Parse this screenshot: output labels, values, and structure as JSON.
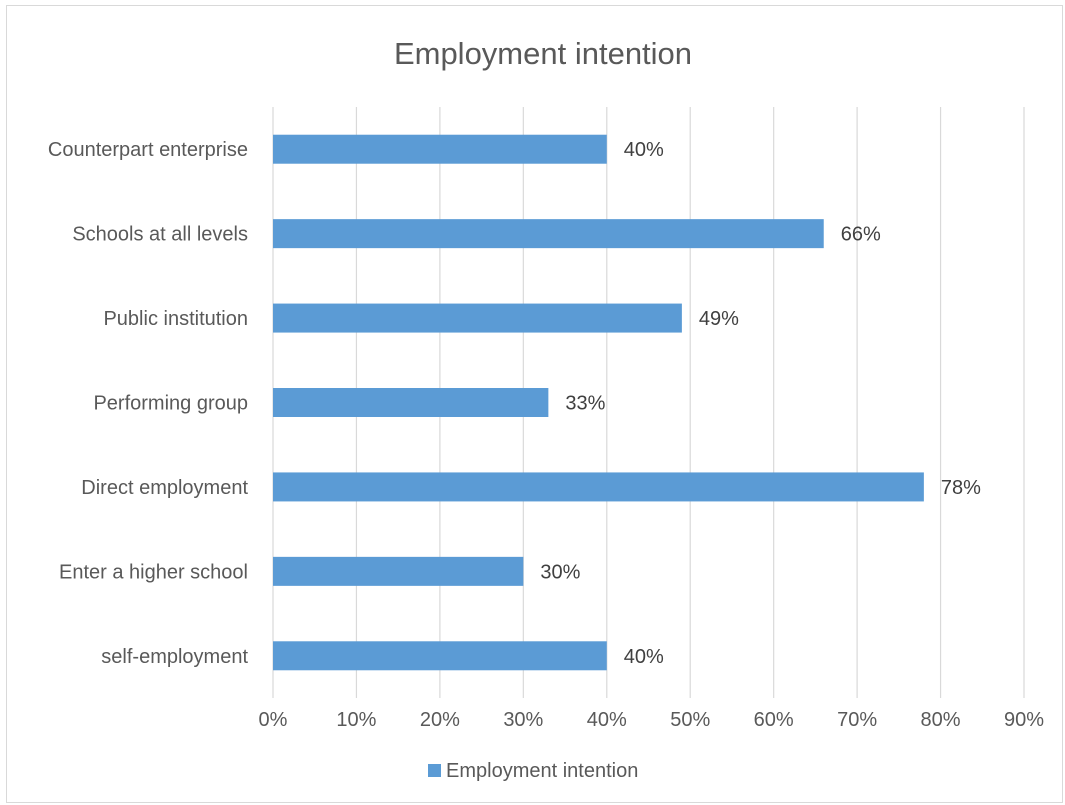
{
  "chart_data": {
    "type": "bar",
    "orientation": "horizontal",
    "title": "Employment intention",
    "categories": [
      "Counterpart enterprise",
      "Schools at all levels",
      "Public institution",
      "Performing group",
      "Direct employment",
      "Enter a higher school",
      "self-employment"
    ],
    "series": [
      {
        "name": "Employment intention",
        "values": [
          40,
          66,
          49,
          33,
          78,
          30,
          40
        ],
        "data_labels": [
          "40%",
          "66%",
          "49%",
          "33%",
          "78%",
          "30%",
          "40%"
        ],
        "color": "#5b9bd5"
      }
    ],
    "x_ticks": [
      "0%",
      "10%",
      "20%",
      "30%",
      "40%",
      "50%",
      "60%",
      "70%",
      "80%",
      "90%"
    ],
    "xlim": [
      0,
      90
    ],
    "xlabel": "",
    "ylabel": "",
    "grid": true,
    "legend_position": "bottom"
  }
}
